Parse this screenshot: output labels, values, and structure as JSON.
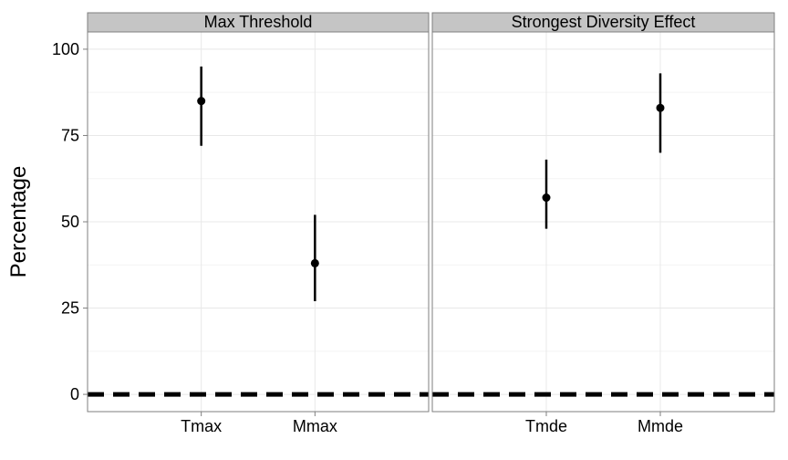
{
  "chart_data": {
    "type": "pointrange",
    "ylabel": "Percentage",
    "ylim": [
      -5,
      105
    ],
    "yticks": [
      0,
      25,
      50,
      75,
      100
    ],
    "grid": true,
    "reference_line": {
      "y": 0,
      "style": "dashed"
    },
    "panels": [
      {
        "title": "Max Threshold",
        "categories": [
          "Tmax",
          "Mmax"
        ],
        "points": [
          {
            "x": "Tmax",
            "y": 85,
            "ymin": 72,
            "ymax": 95
          },
          {
            "x": "Mmax",
            "y": 38,
            "ymin": 27,
            "ymax": 52
          }
        ]
      },
      {
        "title": "Strongest Diversity Effect",
        "categories": [
          "Tmde",
          "Mmde"
        ],
        "points": [
          {
            "x": "Tmde",
            "y": 57,
            "ymin": 48,
            "ymax": 68
          },
          {
            "x": "Mmde",
            "y": 83,
            "ymin": 70,
            "ymax": 93
          }
        ]
      }
    ]
  }
}
